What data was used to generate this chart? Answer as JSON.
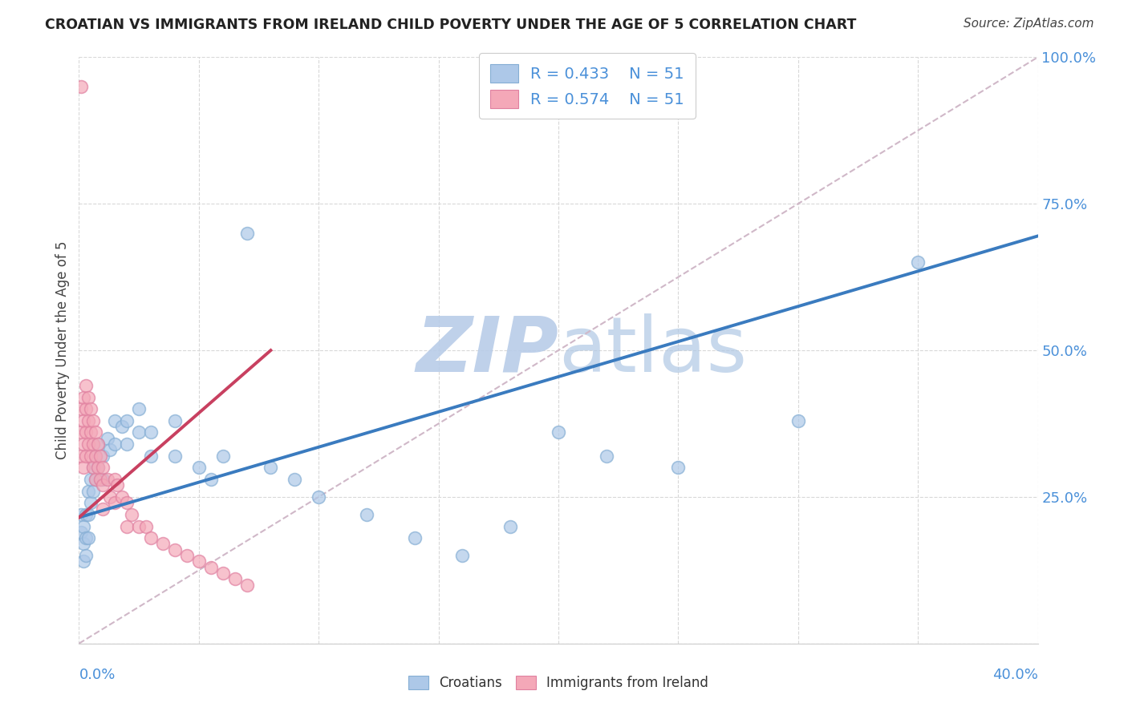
{
  "title": "CROATIAN VS IMMIGRANTS FROM IRELAND CHILD POVERTY UNDER THE AGE OF 5 CORRELATION CHART",
  "source": "Source: ZipAtlas.com",
  "ylabel": "Child Poverty Under the Age of 5",
  "R_croatian": 0.433,
  "N_croatian": 51,
  "R_ireland": 0.574,
  "N_ireland": 51,
  "color_croatian_fill": "#adc8e8",
  "color_croatian_edge": "#85aed4",
  "color_ireland_fill": "#f4a8b8",
  "color_ireland_edge": "#e080a0",
  "color_line_croatian": "#3a7bbf",
  "color_line_ireland": "#c84060",
  "color_ref_line": "#d0b8c8",
  "watermark_zip_color": "#b8cce8",
  "watermark_atlas_color": "#b0c8e4",
  "background_color": "#ffffff",
  "ytick_color": "#4a90d9",
  "xlim": [
    0,
    0.4
  ],
  "ylim": [
    0,
    1.0
  ],
  "xtick_vals": [
    0.0,
    0.05,
    0.1,
    0.15,
    0.2,
    0.25,
    0.3,
    0.35,
    0.4
  ],
  "ytick_vals": [
    0.0,
    0.25,
    0.5,
    0.75,
    1.0
  ],
  "ytick_labels": [
    "",
    "25.0%",
    "50.0%",
    "75.0%",
    "100.0%"
  ],
  "croatian_x": [
    0.001,
    0.001,
    0.002,
    0.002,
    0.002,
    0.003,
    0.003,
    0.003,
    0.004,
    0.004,
    0.004,
    0.005,
    0.005,
    0.006,
    0.006,
    0.007,
    0.007,
    0.008,
    0.008,
    0.009,
    0.01,
    0.01,
    0.012,
    0.013,
    0.015,
    0.015,
    0.018,
    0.02,
    0.02,
    0.025,
    0.025,
    0.03,
    0.03,
    0.04,
    0.04,
    0.05,
    0.055,
    0.06,
    0.07,
    0.08,
    0.09,
    0.1,
    0.12,
    0.14,
    0.16,
    0.18,
    0.2,
    0.22,
    0.25,
    0.3,
    0.35
  ],
  "croatian_y": [
    0.22,
    0.19,
    0.2,
    0.17,
    0.14,
    0.22,
    0.18,
    0.15,
    0.26,
    0.22,
    0.18,
    0.28,
    0.24,
    0.3,
    0.26,
    0.32,
    0.28,
    0.34,
    0.3,
    0.28,
    0.32,
    0.28,
    0.35,
    0.33,
    0.38,
    0.34,
    0.37,
    0.38,
    0.34,
    0.4,
    0.36,
    0.36,
    0.32,
    0.38,
    0.32,
    0.3,
    0.28,
    0.32,
    0.7,
    0.3,
    0.28,
    0.25,
    0.22,
    0.18,
    0.15,
    0.2,
    0.36,
    0.32,
    0.3,
    0.38,
    0.65
  ],
  "ireland_x": [
    0.001,
    0.001,
    0.001,
    0.002,
    0.002,
    0.002,
    0.002,
    0.003,
    0.003,
    0.003,
    0.003,
    0.004,
    0.004,
    0.004,
    0.005,
    0.005,
    0.005,
    0.006,
    0.006,
    0.006,
    0.007,
    0.007,
    0.007,
    0.008,
    0.008,
    0.009,
    0.009,
    0.01,
    0.01,
    0.01,
    0.012,
    0.013,
    0.015,
    0.015,
    0.016,
    0.018,
    0.02,
    0.02,
    0.022,
    0.025,
    0.028,
    0.03,
    0.035,
    0.04,
    0.045,
    0.05,
    0.055,
    0.06,
    0.065,
    0.07,
    0.001
  ],
  "ireland_y": [
    0.4,
    0.36,
    0.32,
    0.42,
    0.38,
    0.34,
    0.3,
    0.44,
    0.4,
    0.36,
    0.32,
    0.42,
    0.38,
    0.34,
    0.4,
    0.36,
    0.32,
    0.38,
    0.34,
    0.3,
    0.36,
    0.32,
    0.28,
    0.34,
    0.3,
    0.32,
    0.28,
    0.3,
    0.27,
    0.23,
    0.28,
    0.25,
    0.28,
    0.24,
    0.27,
    0.25,
    0.24,
    0.2,
    0.22,
    0.2,
    0.2,
    0.18,
    0.17,
    0.16,
    0.15,
    0.14,
    0.13,
    0.12,
    0.11,
    0.1,
    0.95
  ],
  "line_c_x0": 0.0,
  "line_c_y0": 0.215,
  "line_c_x1": 0.4,
  "line_c_y1": 0.695,
  "line_i_x0": 0.0,
  "line_i_y0": 0.215,
  "line_i_x1": 0.08,
  "line_i_y1": 0.5,
  "ref_line_x0": 0.0,
  "ref_line_y0": 0.0,
  "ref_line_x1": 0.4,
  "ref_line_y1": 1.0
}
